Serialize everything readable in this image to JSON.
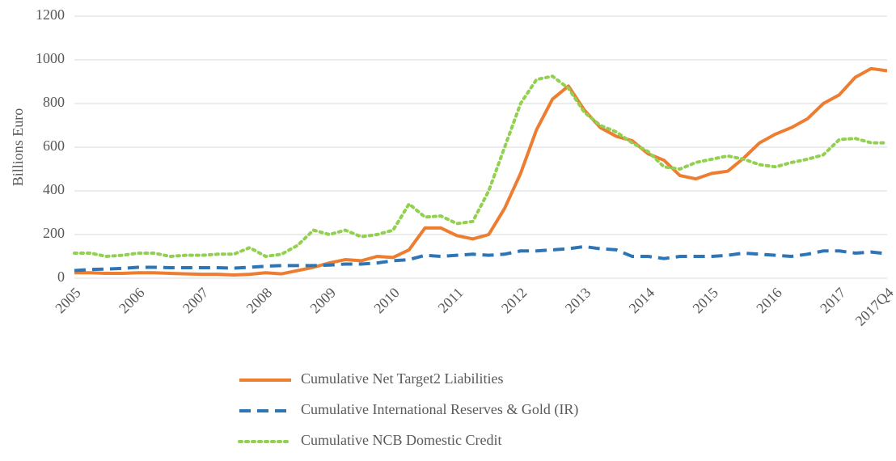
{
  "chart_data": {
    "type": "line",
    "y_label": "Billions Euro",
    "categories": [
      "2005",
      null,
      null,
      null,
      "2006",
      null,
      null,
      null,
      "2007",
      null,
      null,
      null,
      "2008",
      null,
      null,
      null,
      "2009",
      null,
      null,
      null,
      "2010",
      null,
      null,
      null,
      "2011",
      null,
      null,
      null,
      "2012",
      null,
      null,
      null,
      "2013",
      null,
      null,
      null,
      "2014",
      null,
      null,
      null,
      "2015",
      null,
      null,
      null,
      "2016",
      null,
      null,
      null,
      "2017",
      null,
      null,
      "2017Q4"
    ],
    "series": [
      {
        "name": "Cumulative Net Target2 Liabilities",
        "color": "#ed7d31",
        "style": "solid",
        "values": [
          25,
          25,
          22,
          22,
          25,
          25,
          22,
          20,
          18,
          18,
          15,
          18,
          25,
          20,
          35,
          50,
          70,
          85,
          80,
          100,
          95,
          130,
          230,
          230,
          195,
          180,
          200,
          320,
          480,
          680,
          820,
          880,
          770,
          690,
          650,
          630,
          570,
          540,
          470,
          455,
          480,
          490,
          550,
          620,
          660,
          690,
          730,
          800,
          840,
          920,
          960,
          950
        ]
      },
      {
        "name": "Cumulative International Reserves & Gold (IR)",
        "color": "#2e75b6",
        "style": "dashed",
        "values": [
          35,
          40,
          42,
          45,
          50,
          50,
          48,
          48,
          48,
          48,
          46,
          50,
          55,
          58,
          58,
          58,
          60,
          65,
          65,
          70,
          80,
          85,
          105,
          100,
          105,
          110,
          105,
          110,
          125,
          125,
          130,
          135,
          145,
          135,
          130,
          100,
          100,
          90,
          100,
          100,
          100,
          105,
          115,
          110,
          105,
          100,
          110,
          125,
          125,
          115,
          120,
          112
        ]
      },
      {
        "name": "Cumulative NCB Domestic Credit",
        "color": "#92d050",
        "style": "dotted",
        "values": [
          115,
          115,
          100,
          105,
          115,
          115,
          100,
          105,
          105,
          110,
          110,
          140,
          100,
          110,
          150,
          220,
          200,
          220,
          190,
          200,
          220,
          340,
          280,
          285,
          250,
          260,
          400,
          600,
          800,
          910,
          925,
          870,
          760,
          700,
          670,
          620,
          580,
          510,
          500,
          530,
          545,
          560,
          545,
          520,
          510,
          530,
          545,
          565,
          635,
          640,
          620,
          620
        ]
      }
    ],
    "ylim": [
      0,
      1200
    ],
    "yticks": [
      0,
      200,
      400,
      600,
      800,
      1000,
      1200
    ],
    "grid": true,
    "legend": "bottom"
  }
}
